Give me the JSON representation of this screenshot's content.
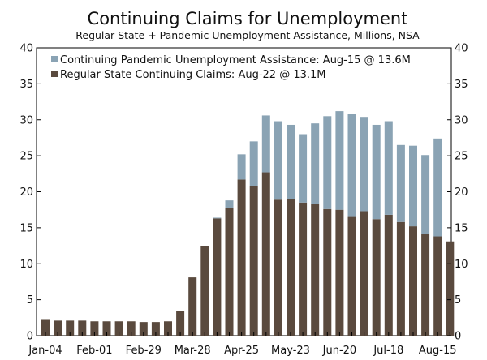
{
  "chart_data": {
    "type": "bar",
    "stacked": true,
    "title": "Continuing Claims for Unemployment",
    "subtitle": "Regular State + Pandemic Unemployment Assistance, Millions, NSA",
    "xlabel": "",
    "ylabel": "",
    "ylim": [
      0,
      40
    ],
    "yticks": [
      0,
      5,
      10,
      15,
      20,
      25,
      30,
      35,
      40
    ],
    "x_tick_labels": [
      {
        "index": 0,
        "label": "Jan-04"
      },
      {
        "index": 4,
        "label": "Feb-01"
      },
      {
        "index": 8,
        "label": "Feb-29"
      },
      {
        "index": 12,
        "label": "Mar-28"
      },
      {
        "index": 16,
        "label": "Apr-25"
      },
      {
        "index": 20,
        "label": "May-23"
      },
      {
        "index": 24,
        "label": "Jun-20"
      },
      {
        "index": 28,
        "label": "Jul-18"
      },
      {
        "index": 32,
        "label": "Aug-15"
      }
    ],
    "categories": [
      "Jan-04",
      "Jan-11",
      "Jan-18",
      "Jan-25",
      "Feb-01",
      "Feb-08",
      "Feb-15",
      "Feb-22",
      "Feb-29",
      "Mar-07",
      "Mar-14",
      "Mar-21",
      "Mar-28",
      "Apr-04",
      "Apr-11",
      "Apr-18",
      "Apr-25",
      "May-02",
      "May-09",
      "May-16",
      "May-23",
      "May-30",
      "Jun-06",
      "Jun-13",
      "Jun-20",
      "Jun-27",
      "Jul-04",
      "Jul-11",
      "Jul-18",
      "Jul-25",
      "Aug-01",
      "Aug-08",
      "Aug-15",
      "Aug-22"
    ],
    "series": [
      {
        "name": "Regular State Continuing Claims: Aug-22 @ 13.1M",
        "color": "#5a4a3e",
        "values": [
          2.2,
          2.1,
          2.1,
          2.1,
          2.0,
          2.0,
          2.0,
          2.0,
          1.9,
          1.9,
          2.0,
          3.4,
          8.1,
          12.4,
          16.3,
          17.8,
          21.7,
          20.8,
          22.7,
          18.9,
          19.0,
          18.5,
          18.3,
          17.6,
          17.5,
          16.5,
          17.3,
          16.2,
          16.8,
          15.8,
          15.2,
          14.1,
          13.8,
          13.1
        ]
      },
      {
        "name": "Continuing Pandemic Unemployment Assistance: Aug-15 @ 13.6M",
        "color": "#8aa3b4",
        "values": [
          0,
          0,
          0,
          0,
          0,
          0,
          0,
          0,
          0,
          0,
          0,
          0,
          0,
          0,
          0.1,
          1.0,
          3.5,
          6.2,
          7.9,
          10.9,
          10.3,
          9.5,
          11.2,
          12.9,
          13.7,
          14.3,
          13.1,
          13.1,
          13.0,
          10.7,
          11.2,
          11.0,
          13.6,
          0
        ]
      }
    ],
    "legend": {
      "placement": "top-left",
      "entries": [
        "Continuing Pandemic Unemployment Assistance: Aug-15 @ 13.6M",
        "Regular State Continuing Claims: Aug-22 @ 13.1M"
      ]
    }
  }
}
